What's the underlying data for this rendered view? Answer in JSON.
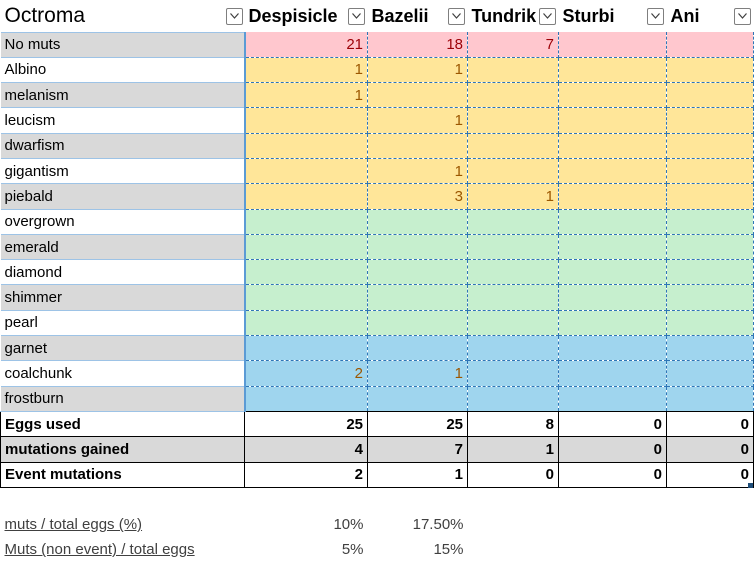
{
  "header": {
    "title": "Octroma",
    "columns": [
      "Despisicle",
      "Bazelii",
      "Tundrik",
      "Sturbi",
      "Ani"
    ]
  },
  "mutation_rows": [
    {
      "label": "No muts",
      "values": [
        "21",
        "18",
        "7",
        "",
        ""
      ],
      "color": "#ffc7ce"
    },
    {
      "label": "Albino",
      "values": [
        "1",
        "1",
        "",
        "",
        ""
      ],
      "color": "#ffe699"
    },
    {
      "label": "melanism",
      "values": [
        "1",
        "",
        "",
        "",
        ""
      ],
      "color": "#ffe699"
    },
    {
      "label": "leucism",
      "values": [
        "",
        "1",
        "",
        "",
        ""
      ],
      "color": "#ffe699"
    },
    {
      "label": "dwarfism",
      "values": [
        "",
        "",
        "",
        "",
        ""
      ],
      "color": "#ffe699"
    },
    {
      "label": "gigantism",
      "values": [
        "",
        "1",
        "",
        "",
        ""
      ],
      "color": "#ffe699"
    },
    {
      "label": "piebald",
      "values": [
        "",
        "3",
        "1",
        "",
        ""
      ],
      "color": "#ffe699"
    },
    {
      "label": "overgrown",
      "values": [
        "",
        "",
        "",
        "",
        ""
      ],
      "color": "#c6efce"
    },
    {
      "label": "emerald",
      "values": [
        "",
        "",
        "",
        "",
        ""
      ],
      "color": "#c6efce"
    },
    {
      "label": "diamond",
      "values": [
        "",
        "",
        "",
        "",
        ""
      ],
      "color": "#c6efce"
    },
    {
      "label": "shimmer",
      "values": [
        "",
        "",
        "",
        "",
        ""
      ],
      "color": "#c6efce"
    },
    {
      "label": "pearl",
      "values": [
        "",
        "",
        "",
        "",
        ""
      ],
      "color": "#c6efce"
    },
    {
      "label": "garnet",
      "values": [
        "",
        "",
        "",
        "",
        ""
      ],
      "color": "#9fd5ee"
    },
    {
      "label": "coalchunk",
      "values": [
        "2",
        "1",
        "",
        "",
        ""
      ],
      "color": "#9fd5ee"
    },
    {
      "label": "frostburn",
      "values": [
        "",
        "",
        "",
        "",
        ""
      ],
      "color": "#9fd5ee"
    }
  ],
  "summary_rows": [
    {
      "label": "Eggs used",
      "values": [
        "25",
        "25",
        "8",
        "0",
        "0"
      ]
    },
    {
      "label": "mutations gained",
      "values": [
        "4",
        "7",
        "1",
        "0",
        "0"
      ]
    },
    {
      "label": "Event mutations",
      "values": [
        "2",
        "1",
        "0",
        "0",
        "0"
      ]
    }
  ],
  "stat_rows": [
    {
      "label": "muts / total eggs (%)",
      "values": [
        "10%",
        "17.50%",
        "",
        "",
        ""
      ]
    },
    {
      "label": "Muts (non event) / total eggs",
      "values": [
        "5%",
        "15%",
        "",
        "",
        ""
      ]
    }
  ],
  "value_colors": {
    "no_muts": "#9c0006",
    "yellow": "#9c5700"
  }
}
